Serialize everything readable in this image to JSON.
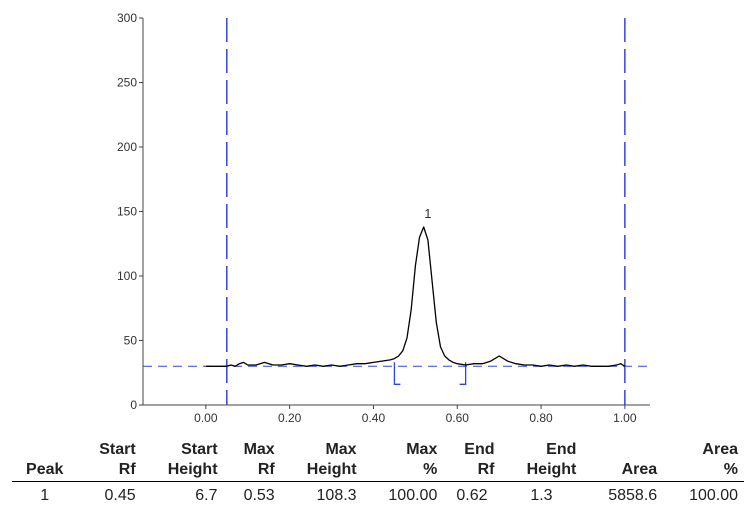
{
  "chart_data": {
    "type": "line",
    "title": "",
    "xlabel": "",
    "ylabel": "",
    "xlim": [
      -0.15,
      1.06
    ],
    "ylim": [
      0,
      300
    ],
    "x_ticks": [
      "0.00",
      "0.20",
      "0.40",
      "0.60",
      "0.80",
      "1.00"
    ],
    "y_ticks": [
      "0",
      "50",
      "100",
      "150",
      "200",
      "250",
      "300"
    ],
    "grid": false,
    "series": [
      {
        "x": [
          0.0,
          0.02,
          0.04,
          0.05,
          0.06,
          0.07,
          0.08,
          0.09,
          0.1,
          0.12,
          0.14,
          0.16,
          0.18,
          0.2,
          0.22,
          0.24,
          0.26,
          0.28,
          0.3,
          0.32,
          0.34,
          0.36,
          0.38,
          0.4,
          0.42,
          0.44,
          0.45,
          0.46,
          0.47,
          0.48,
          0.49,
          0.5,
          0.51,
          0.52,
          0.53,
          0.54,
          0.55,
          0.56,
          0.57,
          0.58,
          0.59,
          0.6,
          0.62,
          0.64,
          0.66,
          0.68,
          0.7,
          0.72,
          0.74,
          0.76,
          0.78,
          0.8,
          0.82,
          0.84,
          0.86,
          0.88,
          0.9,
          0.92,
          0.94,
          0.96,
          0.98,
          0.99,
          1.0
        ],
        "values": [
          30,
          30,
          30,
          30,
          31,
          30,
          32,
          33,
          31,
          31,
          33,
          31,
          31,
          32,
          31,
          30,
          31,
          30,
          31,
          30,
          31,
          32,
          32,
          33,
          34,
          35,
          36,
          38,
          42,
          52,
          74,
          108,
          130,
          138,
          128,
          96,
          64,
          45,
          38,
          35,
          33,
          32,
          31,
          32,
          32,
          34,
          38,
          34,
          32,
          31,
          31,
          30,
          31,
          30,
          31,
          30,
          31,
          30,
          30,
          30,
          31,
          32,
          30
        ]
      }
    ],
    "reference_lines": {
      "baseline_y": 30,
      "vertical_x": [
        0.05,
        1.0
      ]
    },
    "peak_labels": [
      {
        "label": "1",
        "x": 0.53,
        "y": 138
      }
    ],
    "integration_markers": {
      "start_x": 0.45,
      "end_x": 0.62
    }
  },
  "results_table": {
    "headers": [
      "Peak",
      "Start\nRf",
      "Start\nHeight",
      "Max\nRf",
      "Max\nHeight",
      "Max\n%",
      "End\nRf",
      "End\nHeight",
      "Area",
      "Area\n%"
    ],
    "rows": [
      [
        "1",
        "0.45",
        "6.7",
        "0.53",
        "108.3",
        "100.00",
        "0.62",
        "1.3",
        "5858.6",
        "100.00"
      ]
    ]
  },
  "colors": {
    "trace": "#000000",
    "reference": "#3344dd",
    "axis": "#444444"
  }
}
